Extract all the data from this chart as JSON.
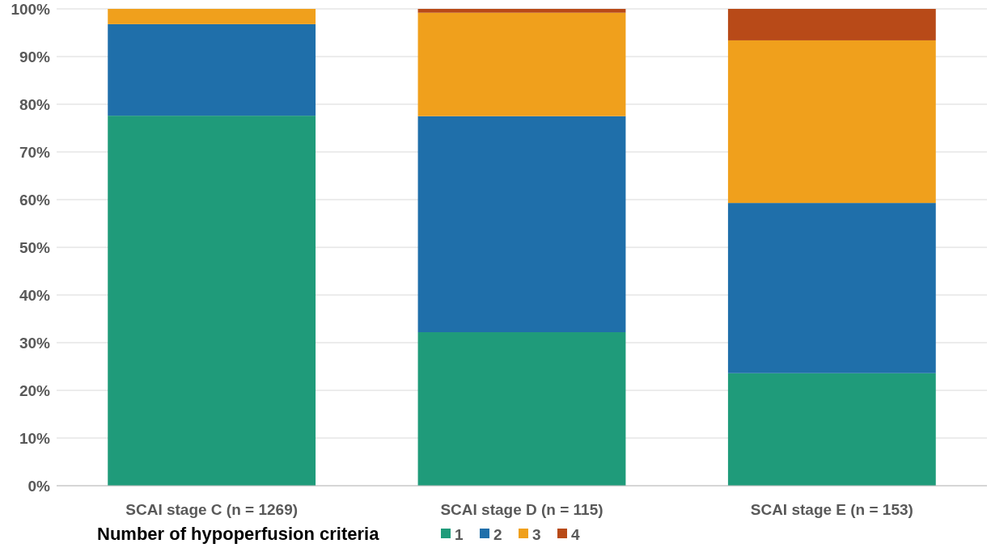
{
  "chart_data": {
    "type": "bar",
    "stacked": true,
    "categories": [
      "SCAI stage C (n = 1269)",
      "SCAI stage D (n = 115)",
      "SCAI stage E (n = 153)"
    ],
    "series": [
      {
        "name": "1",
        "color": "#1f9b7a",
        "values": [
          77.6,
          32.2,
          23.6
        ]
      },
      {
        "name": "2",
        "color": "#1f6faa",
        "values": [
          19.2,
          45.3,
          35.7
        ]
      },
      {
        "name": "3",
        "color": "#f0a01c",
        "values": [
          3.2,
          21.7,
          34.1
        ]
      },
      {
        "name": "4",
        "color": "#b84a18",
        "values": [
          0,
          0.8,
          6.6
        ]
      }
    ],
    "ylim": [
      0,
      100
    ],
    "yticks": [
      {
        "value": 0,
        "label": "0%"
      },
      {
        "value": 10,
        "label": "10%"
      },
      {
        "value": 20,
        "label": "20%"
      },
      {
        "value": 30,
        "label": "30%"
      },
      {
        "value": 40,
        "label": "40%"
      },
      {
        "value": 50,
        "label": "50%"
      },
      {
        "value": 60,
        "label": "60%"
      },
      {
        "value": 70,
        "label": "70%"
      },
      {
        "value": 80,
        "label": "80%"
      },
      {
        "value": 90,
        "label": "90%"
      },
      {
        "value": 100,
        "label": "100%"
      }
    ],
    "grid": "y",
    "legend": "bottom left",
    "legend_title": "Number of hypoperfusion criteria"
  }
}
